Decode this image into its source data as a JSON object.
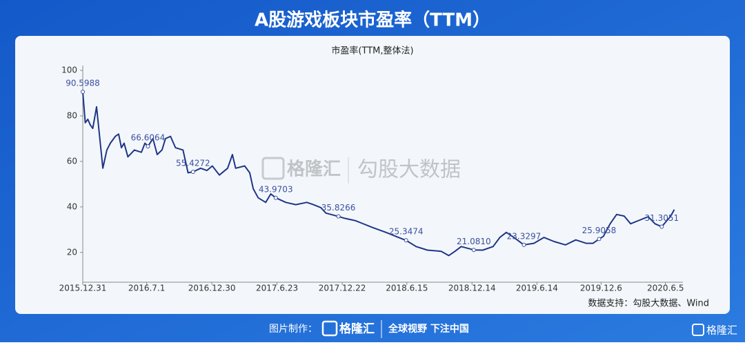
{
  "title": "A股游戏板块市盈率（TTM）",
  "chart_data": {
    "type": "line",
    "title": "市盈率(TTM,整体法)",
    "x": [
      0,
      1,
      2,
      3,
      4,
      5.5,
      8,
      9.6,
      11,
      13,
      14.3,
      15.4,
      16.5,
      18,
      20.6,
      23.4,
      24.8,
      26,
      28,
      29.7,
      31.6,
      33,
      35,
      37,
      40,
      42,
      44,
      47,
      49.5,
      51.7,
      54.5,
      57.8,
      59.7,
      61,
      64.6,
      66.6,
      68,
      70,
      73,
      75,
      77,
      81,
      85,
      89.4,
      92,
      95,
      97,
      102,
      104.5,
      108.7,
      111,
      115.5,
      121,
      125,
      129,
      133,
      137.5,
      143,
      146,
      148.5,
      151,
      156,
      159.6,
      163.7,
      166.4,
      169,
      172,
      176,
      180,
      184,
      188,
      192.6,
      196.7,
      200.8,
      203.6,
      206,
      207.7,
      210.4,
      213,
      216,
      218.6,
      221.5,
      225.6,
      228.3,
      231,
      232.5,
      234.4,
      236
    ],
    "series": [
      {
        "color": "#1f3585",
        "values": [
          90.6,
          77,
          78.5,
          76,
          74.5,
          84,
          57,
          65,
          68,
          71,
          72,
          66,
          68,
          62,
          65,
          64,
          68,
          66.6,
          70,
          63,
          65,
          70,
          71,
          66,
          65,
          55,
          55.4,
          57,
          56,
          58,
          54,
          57,
          63,
          57,
          58,
          55,
          48,
          44,
          42,
          45.7,
          44,
          42,
          41,
          42,
          41,
          39.7,
          37.3,
          35.8,
          35,
          34,
          33,
          31,
          28.8,
          27,
          25.3,
          22.6,
          21,
          20.5,
          18.6,
          20.5,
          22.6,
          21.1,
          21,
          22.6,
          26.6,
          28.8,
          26.6,
          23.3,
          24,
          26.6,
          24.8,
          23.3,
          25.5,
          24,
          24,
          25.9,
          27,
          32.6,
          36.7,
          36,
          32.6,
          33.9,
          35.7,
          32.6,
          31.3,
          33.3,
          35.7,
          38.8
        ]
      }
    ],
    "xlim": [
      0,
      240
    ],
    "xticks": [
      {
        "value": 0,
        "label": "2015.12.31"
      },
      {
        "value": 25.5,
        "label": "2016.7.1"
      },
      {
        "value": 51.5,
        "label": "2016.12.30"
      },
      {
        "value": 77.5,
        "label": "2017.6.23"
      },
      {
        "value": 103.5,
        "label": "2017.12.22"
      },
      {
        "value": 129.3,
        "label": "2018.6.15"
      },
      {
        "value": 155.3,
        "label": "2018.12.14"
      },
      {
        "value": 181.2,
        "label": "2019.6.14"
      },
      {
        "value": 206.8,
        "label": "2019.12.6"
      },
      {
        "value": 232.5,
        "label": "2020.6.5"
      }
    ],
    "ylim": [
      6,
      100
    ],
    "yticks": [
      20,
      40,
      60,
      80,
      100
    ],
    "annotations": [
      {
        "x": 0,
        "value": 90.5988
      },
      {
        "x": 26,
        "value": 66.6064
      },
      {
        "x": 44,
        "value": 55.4272
      },
      {
        "x": 77,
        "value": 43.9703
      },
      {
        "x": 102,
        "value": 35.8266
      },
      {
        "x": 129,
        "value": 25.3474
      },
      {
        "x": 156,
        "value": 21.081,
        "label": "21.0810"
      },
      {
        "x": 176,
        "value": 23.3297
      },
      {
        "x": 206,
        "value": 25.9058
      },
      {
        "x": 231,
        "value": 31.3051
      }
    ],
    "source": "数据支持：勾股大数据、Wind"
  },
  "watermark": {
    "brand": "格隆汇",
    "product": "勾股大数据"
  },
  "footer": {
    "credit": "图片制作：",
    "brand": "格隆汇",
    "slogan": "全球视野 下注中国"
  },
  "corner_logo": "格隆汇"
}
